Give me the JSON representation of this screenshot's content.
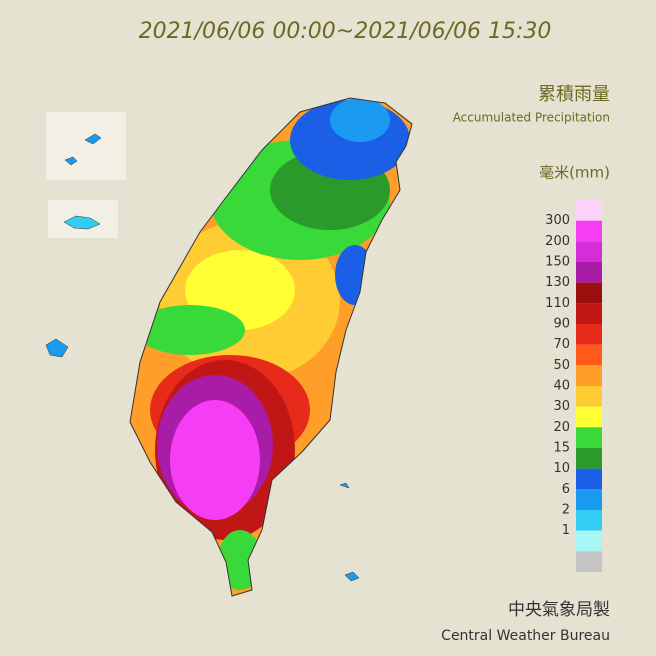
{
  "title": "2021/06/06 00:00~2021/06/06 15:30",
  "legend": {
    "title_zh": "累積雨量",
    "title_en": "Accumulated Precipitation",
    "unit": "毫米(mm)",
    "overflow_color": "#fdd3fb",
    "items": [
      {
        "value": 300,
        "color": "#f43df5"
      },
      {
        "value": 200,
        "color": "#d62ed6"
      },
      {
        "value": 150,
        "color": "#a81ca8"
      },
      {
        "value": 130,
        "color": "#9a0e0e"
      },
      {
        "value": 110,
        "color": "#c01616"
      },
      {
        "value": 90,
        "color": "#e82a1a"
      },
      {
        "value": 70,
        "color": "#ff5a1a"
      },
      {
        "value": 50,
        "color": "#ff9f2a"
      },
      {
        "value": 40,
        "color": "#ffcc33"
      },
      {
        "value": 30,
        "color": "#ffff33"
      },
      {
        "value": 20,
        "color": "#3ad93a"
      },
      {
        "value": 15,
        "color": "#2a9a2a"
      },
      {
        "value": 10,
        "color": "#1a5fe6"
      },
      {
        "value": 6,
        "color": "#1a9af0"
      },
      {
        "value": 2,
        "color": "#33ccf5"
      },
      {
        "value": 1,
        "color": "#a8f5f5"
      }
    ],
    "zero_color": "#c4c4c4"
  },
  "footer": {
    "zh": "中央氣象局製",
    "en": "Central Weather Bureau"
  }
}
